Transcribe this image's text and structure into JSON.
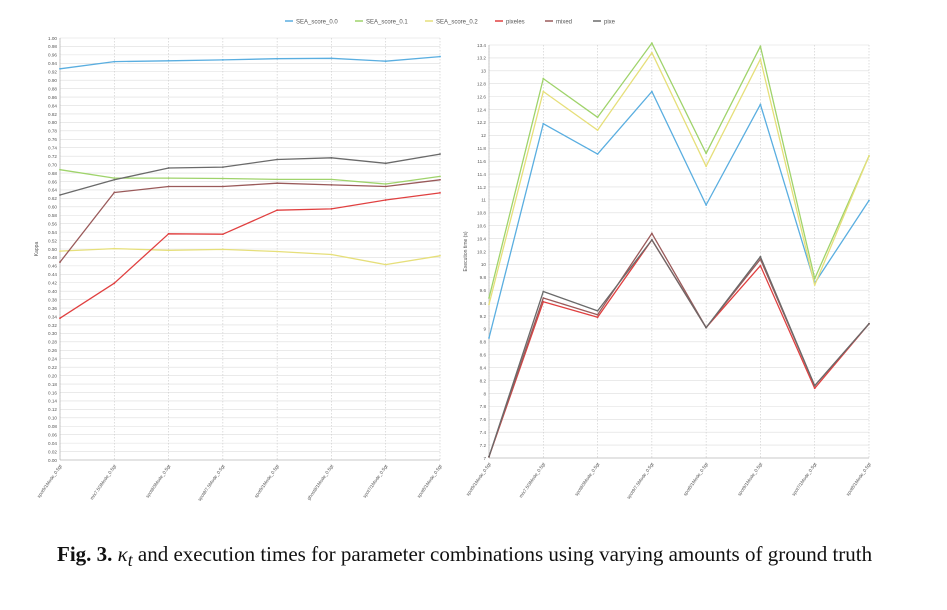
{
  "legend": [
    {
      "name": "SEA_score_0.0",
      "color": "#5aaee0"
    },
    {
      "name": "SEA_score_0.1",
      "color": "#9fd36b"
    },
    {
      "name": "SEA_score_0.2",
      "color": "#e6df7a"
    },
    {
      "name": "pixeles",
      "color": "#e04040"
    },
    {
      "name": "mixed",
      "color": "#9a5a5a"
    },
    {
      "name": "pixe",
      "color": "#6a6a6a"
    }
  ],
  "chart_data": [
    {
      "type": "line",
      "title": "",
      "xlabel": "",
      "ylabel": "Kappa",
      "ylim": [
        0.0,
        1.0
      ],
      "ytick_step": 0.02,
      "grid": true,
      "categories": [
        "spot9/1Mode_0.5gt",
        "mix7.5/3Mode_0.5gt",
        "spot8/3Mode_0.5gt",
        "spot8/7.5Mode_0.5gt",
        "spot9/1Mode_0.5gt",
        "ghost8/1Mode_0.5gt",
        "spot7/1Mode_0.5gt",
        "spot8/1Mode_0.5gt"
      ],
      "series": [
        {
          "name": "SEA_score_0.0",
          "color": "#5aaee0",
          "values": [
            0.927,
            0.944,
            0.946,
            0.948,
            0.951,
            0.952,
            0.945,
            0.956
          ]
        },
        {
          "name": "SEA_score_0.1",
          "color": "#9fd36b",
          "values": [
            0.688,
            0.668,
            0.668,
            0.667,
            0.665,
            0.665,
            0.654,
            0.672
          ]
        },
        {
          "name": "SEA_score_0.2",
          "color": "#e6df7a",
          "values": [
            0.495,
            0.501,
            0.497,
            0.499,
            0.494,
            0.487,
            0.463,
            0.484
          ]
        },
        {
          "name": "pixeles",
          "color": "#e04040",
          "values": [
            0.336,
            0.419,
            0.536,
            0.535,
            0.592,
            0.595,
            0.616,
            0.633
          ]
        },
        {
          "name": "mixed",
          "color": "#9a5a5a",
          "values": [
            0.469,
            0.634,
            0.648,
            0.648,
            0.656,
            0.652,
            0.648,
            0.664
          ]
        },
        {
          "name": "pixe",
          "color": "#6a6a6a",
          "values": [
            0.628,
            0.664,
            0.692,
            0.694,
            0.712,
            0.716,
            0.703,
            0.725
          ]
        }
      ]
    },
    {
      "type": "line",
      "title": "",
      "xlabel": "",
      "ylabel": "Execution time (s)",
      "ylim": [
        7.0,
        13.4
      ],
      "ytick_step": 0.2,
      "grid": true,
      "categories": [
        "spot9/1Mode_0.5gt",
        "mix7.5/3Mode_0.5gt",
        "spot8/3Mode_0.5gt",
        "spot9/7.5Mode_0.5gt",
        "spot8/1Mode_0.5gt",
        "spot9/1Mode_0.5gt",
        "spot7/1Mode_0.5gt",
        "spot8/1Mode_0.5gt"
      ],
      "series": [
        {
          "name": "SEA_score_0.0",
          "color": "#5aaee0",
          "values": [
            8.86,
            12.18,
            11.71,
            12.68,
            10.92,
            12.48,
            9.71,
            10.99
          ]
        },
        {
          "name": "SEA_score_0.1",
          "color": "#9fd36b",
          "values": [
            9.48,
            12.88,
            12.28,
            13.43,
            11.72,
            13.38,
            9.78,
            11.68
          ]
        },
        {
          "name": "SEA_score_0.2",
          "color": "#e6df7a",
          "values": [
            9.38,
            12.68,
            12.08,
            13.28,
            11.52,
            13.18,
            9.68,
            11.68
          ]
        },
        {
          "name": "pixeles",
          "color": "#e04040",
          "values": [
            7.02,
            9.42,
            9.18,
            10.38,
            9.02,
            9.98,
            8.08,
            9.08
          ]
        },
        {
          "name": "mixed",
          "color": "#9a5a5a",
          "values": [
            7.02,
            9.48,
            9.22,
            10.48,
            9.02,
            10.08,
            8.12,
            9.08
          ]
        },
        {
          "name": "pixe",
          "color": "#6a6a6a",
          "values": [
            7.02,
            9.58,
            9.28,
            10.38,
            9.02,
            10.12,
            8.12,
            9.08
          ]
        }
      ]
    }
  ],
  "caption": {
    "label": "Fig. 3.",
    "kappa": "κ",
    "subscript": "t",
    "text": " and execution times for parameter combinations using varying amounts of ground truth"
  }
}
